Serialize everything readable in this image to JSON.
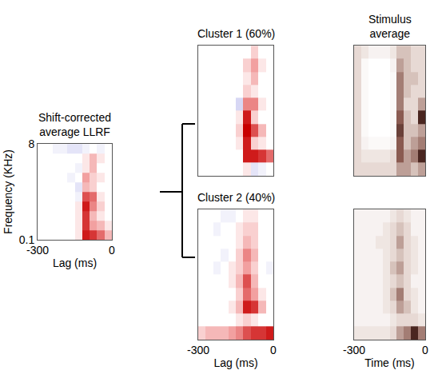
{
  "chart_data": [
    {
      "type": "heatmap",
      "title": "Shift-corrected average LLRF",
      "xlabel": "Lag (ms)",
      "ylabel": "Frequency (KHz)",
      "x": [
        -285,
        -255,
        -225,
        -195,
        -165,
        -135,
        -105,
        -75,
        -45,
        -15
      ],
      "y": [
        0.124,
        0.193,
        0.299,
        0.462,
        0.716,
        1.11,
        1.72,
        2.66,
        4.12,
        6.38
      ],
      "xlim": [
        -300,
        0
      ],
      "xticks": [
        -300,
        0
      ],
      "ylim": [
        0.1,
        8
      ],
      "yticks": [
        0.1,
        8
      ],
      "log": "y",
      "zlim": [
        -1,
        1
      ],
      "z": [
        [
          0,
          0,
          0,
          0,
          0,
          0.1,
          0.9,
          0.8,
          0.6,
          0.3
        ],
        [
          0,
          0,
          0,
          0,
          0,
          0.1,
          0.8,
          0.4,
          0.3,
          0.1
        ],
        [
          0,
          0,
          0,
          0,
          0,
          0.1,
          0.8,
          0.3,
          0.1,
          0
        ],
        [
          0,
          0,
          0,
          0,
          0,
          0.1,
          0.9,
          0.5,
          0.2,
          0
        ],
        [
          0,
          0,
          0,
          0,
          0,
          -0.1,
          0.7,
          0.6,
          0.1,
          0
        ],
        [
          0,
          0,
          0,
          0,
          0,
          -0.2,
          0.3,
          0.2,
          0,
          0
        ],
        [
          0,
          0,
          0,
          0,
          -0.1,
          0,
          0.4,
          0.2,
          0.1,
          0
        ],
        [
          0,
          0,
          0,
          0,
          0,
          -0.1,
          0.1,
          0.3,
          0,
          0
        ],
        [
          0,
          0,
          0,
          0,
          0,
          0,
          0.1,
          0.3,
          0.1,
          0
        ],
        [
          0,
          0,
          -0.1,
          -0.1,
          -0.2,
          -0.2,
          -0.1,
          0,
          -0.1,
          0
        ]
      ]
    },
    {
      "type": "heatmap",
      "title": "Cluster 1 (60%)",
      "tick_labels": false,
      "x": [
        -285,
        -255,
        -225,
        -195,
        -165,
        -135,
        -105,
        -75,
        -45,
        -15
      ],
      "y": [
        0.124,
        0.193,
        0.299,
        0.462,
        0.716,
        1.11,
        1.72,
        2.66,
        4.12,
        6.38
      ],
      "xlim": [
        -300,
        0
      ],
      "ylim": [
        0.1,
        8
      ],
      "log": "y",
      "zlim": [
        -1,
        1
      ],
      "z": [
        [
          0,
          0,
          0,
          0,
          0,
          0,
          0.1,
          -0.2,
          -0.1,
          0
        ],
        [
          0,
          0,
          0,
          0,
          0,
          0,
          0.9,
          0.9,
          0.8,
          0.6
        ],
        [
          0,
          0,
          0,
          0,
          0,
          0.1,
          0.9,
          0.2,
          0.1,
          0
        ],
        [
          0,
          0,
          0,
          0,
          0,
          0.2,
          1,
          0.7,
          0.3,
          0
        ],
        [
          0,
          0,
          0,
          0,
          0,
          0.1,
          0.9,
          0.2,
          0,
          0
        ],
        [
          0,
          0,
          0,
          0,
          0,
          -0.3,
          0.5,
          0.5,
          0.1,
          0
        ],
        [
          0,
          0,
          0,
          0,
          0,
          0,
          0.2,
          0.1,
          0,
          0
        ],
        [
          0,
          0,
          0,
          0,
          0,
          0,
          0.1,
          0.3,
          0,
          0
        ],
        [
          0,
          0,
          0,
          0,
          0,
          0,
          0.2,
          0.4,
          0.1,
          0
        ],
        [
          0,
          0,
          0,
          0,
          0,
          0,
          0,
          0.2,
          0,
          0
        ]
      ]
    },
    {
      "type": "heatmap",
      "title": "Cluster 2 (40%)",
      "xlabel": "Lag (ms)",
      "tick_labels": "x",
      "x": [
        -285,
        -255,
        -225,
        -195,
        -165,
        -135,
        -105,
        -75,
        -45,
        -15
      ],
      "y": [
        0.124,
        0.193,
        0.299,
        0.462,
        0.716,
        1.11,
        1.72,
        2.66,
        4.12,
        6.38
      ],
      "xlim": [
        -300,
        0
      ],
      "xticks": [
        -300,
        0
      ],
      "ylim": [
        0.1,
        8
      ],
      "log": "y",
      "zlim": [
        -1,
        1
      ],
      "z": [
        [
          0.2,
          0.3,
          0.3,
          0.3,
          0.4,
          0.5,
          0.7,
          0.8,
          0.8,
          0.9
        ],
        [
          0,
          0,
          0,
          0,
          0,
          0.1,
          0.2,
          0.1,
          0,
          0
        ],
        [
          0,
          0,
          0,
          0,
          0.1,
          0.3,
          0.9,
          0.8,
          0.3,
          0
        ],
        [
          0,
          0,
          0,
          0,
          0,
          0.2,
          0.6,
          0.4,
          0.1,
          0
        ],
        [
          0,
          0,
          0,
          0,
          0.1,
          0.3,
          0.7,
          0.3,
          0,
          0
        ],
        [
          0,
          0,
          -0.1,
          0,
          0.1,
          0.2,
          0.4,
          0.2,
          0,
          -0.1
        ],
        [
          0,
          0,
          0,
          -0.1,
          0,
          0.2,
          0.5,
          0.3,
          0,
          0
        ],
        [
          0,
          0,
          0,
          0,
          0,
          0.1,
          0.3,
          0.2,
          0,
          0
        ],
        [
          0,
          0,
          -0.1,
          0,
          0,
          0.1,
          0.2,
          0.2,
          0,
          0
        ],
        [
          0,
          0,
          0,
          -0.1,
          -0.1,
          0,
          0.1,
          0.1,
          0,
          0
        ]
      ]
    },
    {
      "type": "heatmap",
      "title": "Stimulus average",
      "tick_labels": false,
      "x": [
        -285,
        -255,
        -225,
        -195,
        -165,
        -135,
        -105,
        -75,
        -45,
        -15
      ],
      "y": [
        0.124,
        0.193,
        0.299,
        0.462,
        0.716,
        1.11,
        1.72,
        2.66,
        4.12,
        6.38
      ],
      "xlim": [
        -300,
        0
      ],
      "ylim": [
        0.1,
        8
      ],
      "log": "y",
      "zlim": [
        0,
        1
      ],
      "z": [
        [
          0.3,
          0.3,
          0.3,
          0.3,
          0.3,
          0.3,
          0.5,
          0.5,
          0.4,
          0.5
        ],
        [
          0.3,
          0.2,
          0.2,
          0.2,
          0.2,
          0.3,
          0.7,
          0.5,
          0.6,
          0.9
        ],
        [
          0.3,
          0.1,
          0.05,
          0.05,
          0.05,
          0.1,
          0.7,
          0.4,
          0.5,
          0.6
        ],
        [
          0.3,
          0.05,
          0,
          0,
          0,
          0.05,
          0.8,
          0.4,
          0.4,
          0.5
        ],
        [
          0.3,
          0.05,
          0,
          0,
          0,
          0.05,
          0.7,
          0.4,
          0.3,
          0.9
        ],
        [
          0.3,
          0.05,
          0,
          0,
          0,
          0.05,
          0.6,
          0.3,
          0.3,
          0.5
        ],
        [
          0.3,
          0.05,
          0,
          0,
          0,
          0.05,
          0.6,
          0.4,
          0.3,
          0.3
        ],
        [
          0.3,
          0.05,
          0,
          0,
          0,
          0.05,
          0.6,
          0.4,
          0.4,
          0.3
        ],
        [
          0.3,
          0.05,
          0,
          0,
          0,
          0.1,
          0.5,
          0.4,
          0.3,
          0.3
        ],
        [
          0.3,
          0.2,
          0.1,
          0.1,
          0.1,
          0.2,
          0.4,
          0.4,
          0.3,
          0.3
        ]
      ]
    },
    {
      "type": "heatmap",
      "xlabel": "Time (ms)",
      "tick_labels": "x",
      "x": [
        -285,
        -255,
        -225,
        -195,
        -165,
        -135,
        -105,
        -75,
        -45,
        -15
      ],
      "y": [
        0.124,
        0.193,
        0.299,
        0.462,
        0.716,
        1.11,
        1.72,
        2.66,
        4.12,
        6.38
      ],
      "xlim": [
        -300,
        0
      ],
      "xticks": [
        -300,
        0
      ],
      "ylim": [
        0.1,
        8
      ],
      "log": "y",
      "zlim": [
        0,
        1
      ],
      "z": [
        [
          0.2,
          0.2,
          0.2,
          0.2,
          0.2,
          0.3,
          0.5,
          0.6,
          0.9,
          0.6
        ],
        [
          0.1,
          0.1,
          0.1,
          0.1,
          0.1,
          0.2,
          0.3,
          0.3,
          0.3,
          0.2
        ],
        [
          0.1,
          0.1,
          0.1,
          0.1,
          0.2,
          0.3,
          0.5,
          0.4,
          0.2,
          0.1
        ],
        [
          0.1,
          0.1,
          0.1,
          0.1,
          0.2,
          0.4,
          0.6,
          0.3,
          0.2,
          0.1
        ],
        [
          0.1,
          0.1,
          0.1,
          0.1,
          0.2,
          0.3,
          0.4,
          0.3,
          0.1,
          0.1
        ],
        [
          0.1,
          0.1,
          0.1,
          0.1,
          0.2,
          0.4,
          0.5,
          0.3,
          0.2,
          0.1
        ],
        [
          0.1,
          0.1,
          0.1,
          0.1,
          0.2,
          0.3,
          0.4,
          0.3,
          0.2,
          0.1
        ],
        [
          0.1,
          0.1,
          0.1,
          0.2,
          0.2,
          0.3,
          0.5,
          0.3,
          0.2,
          0.1
        ],
        [
          0.1,
          0.1,
          0.1,
          0.1,
          0.2,
          0.3,
          0.4,
          0.3,
          0.1,
          0.1
        ],
        [
          0.1,
          0.1,
          0.1,
          0.1,
          0.1,
          0.2,
          0.3,
          0.2,
          0.1,
          0.1
        ]
      ]
    }
  ]
}
